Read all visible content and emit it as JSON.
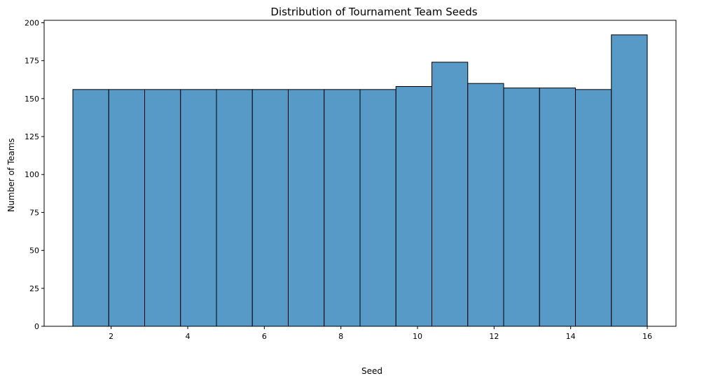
{
  "chart_data": {
    "type": "bar",
    "title": "Distribution of Tournament Team Seeds",
    "xlabel": "Seed",
    "ylabel": "Number of Teams",
    "x_range": [
      1,
      16
    ],
    "xlim": [
      0.25,
      16.75
    ],
    "ylim": [
      0,
      201.6
    ],
    "x_ticks": [
      "2",
      "4",
      "6",
      "8",
      "10",
      "12",
      "14",
      "16"
    ],
    "x_tick_values": [
      2,
      4,
      6,
      8,
      10,
      12,
      14,
      16
    ],
    "y_ticks": [
      "0",
      "25",
      "50",
      "75",
      "100",
      "125",
      "150",
      "175",
      "200"
    ],
    "y_tick_values": [
      0,
      25,
      50,
      75,
      100,
      125,
      150,
      175,
      200
    ],
    "values": [
      156,
      156,
      156,
      156,
      156,
      156,
      156,
      156,
      156,
      158,
      174,
      160,
      157,
      157,
      156,
      192
    ],
    "bar_color": "#5799c7",
    "edge_color": "#000000",
    "grid": false
  }
}
